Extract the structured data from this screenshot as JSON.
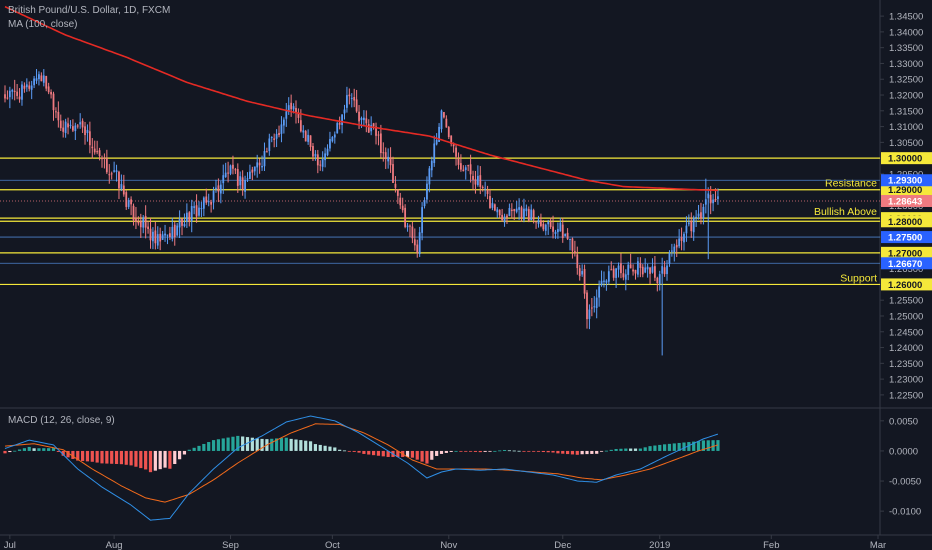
{
  "header": {
    "symbol": "British Pound/U.S. Dollar, 1D, FXCM",
    "ma_label": "MA (100, close)",
    "macd_label": "MACD (12, 26, close, 9)"
  },
  "colors": {
    "background": "#131722",
    "up": "#5b9cf6",
    "down": "#f07a80",
    "ma": "#e52a24",
    "level": "#f5e83a",
    "macd_line": "#2f8fe6",
    "signal_line": "#f26a1b",
    "hist_pos_strong": "#26a69a",
    "hist_pos_weak": "#b2dfdb",
    "hist_neg_strong": "#ef5350",
    "hist_neg_weak": "#ffcdd2",
    "axis_text": "#b2b5be",
    "price_tag": "#2962ff"
  },
  "chart_data": [
    {
      "type": "candlestick",
      "title": "British Pound/U.S. Dollar, 1D, FXCM",
      "x_ticks": [
        "Jul",
        "Aug",
        "Sep",
        "Oct",
        "Nov",
        "Dec",
        "2019",
        "Feb",
        "Mar"
      ],
      "y_ticks": [
        "1.34500",
        "1.34000",
        "1.33500",
        "1.33000",
        "1.32500",
        "1.32000",
        "1.31500",
        "1.31000",
        "1.30500",
        "1.30000",
        "1.29500",
        "1.29000",
        "1.28500",
        "1.28000",
        "1.27500",
        "1.27000",
        "1.26500",
        "1.26000",
        "1.25500",
        "1.25000",
        "1.24500",
        "1.24000",
        "1.23500",
        "1.23000",
        "1.22500"
      ],
      "ylim": [
        1.2218,
        1.3482
      ],
      "horizontal_levels": [
        {
          "value": 1.3,
          "label": "",
          "tag": "1.30000",
          "style": "solid",
          "color": "#f5e83a"
        },
        {
          "value": 1.29,
          "label": "Resistance",
          "tag": "1.29000",
          "style": "solid",
          "color": "#f5e83a"
        },
        {
          "value": 1.281,
          "label": "Bullish Above",
          "tag": "1.28100",
          "style": "solid",
          "color": "#f5e83a"
        },
        {
          "value": 1.28,
          "label": "",
          "tag": "1.28000",
          "style": "solid",
          "color": "#f5e83a"
        },
        {
          "value": 1.27,
          "label": "",
          "tag": "1.27000",
          "style": "solid",
          "color": "#f5e83a"
        },
        {
          "value": 1.26,
          "label": "Support",
          "tag": "1.26000",
          "style": "solid",
          "color": "#f5e83a"
        },
        {
          "value": 1.293,
          "label": "",
          "tag": "1.29300",
          "style": "thin",
          "color": "#5b9cf6"
        },
        {
          "value": 1.275,
          "label": "",
          "tag": "1.27500",
          "style": "thin",
          "color": "#5b9cf6"
        },
        {
          "value": 1.2667,
          "label": "",
          "tag": "1.26670",
          "style": "thin",
          "color": "#5b9cf6"
        },
        {
          "value": 1.28643,
          "label": "",
          "tag": "1.28643",
          "style": "dotted",
          "color": "#f07a80"
        }
      ],
      "price_anchors": [
        [
          0,
          1.3195
        ],
        [
          8,
          1.321
        ],
        [
          14,
          1.327
        ],
        [
          18,
          1.322
        ],
        [
          24,
          1.309
        ],
        [
          32,
          1.311
        ],
        [
          38,
          1.3
        ],
        [
          46,
          1.294
        ],
        [
          52,
          1.283
        ],
        [
          58,
          1.278
        ],
        [
          62,
          1.273
        ],
        [
          68,
          1.276
        ],
        [
          76,
          1.282
        ],
        [
          84,
          1.286
        ],
        [
          92,
          1.296
        ],
        [
          98,
          1.292
        ],
        [
          106,
          1.3
        ],
        [
          112,
          1.308
        ],
        [
          118,
          1.317
        ],
        [
          124,
          1.306
        ],
        [
          130,
          1.299
        ],
        [
          136,
          1.308
        ],
        [
          142,
          1.322
        ],
        [
          146,
          1.312
        ],
        [
          152,
          1.309
        ],
        [
          158,
          1.299
        ],
        [
          162,
          1.286
        ],
        [
          166,
          1.279
        ],
        [
          170,
          1.272
        ],
        [
          175,
          1.297
        ],
        [
          180,
          1.314
        ],
        [
          184,
          1.307
        ],
        [
          188,
          1.298
        ],
        [
          194,
          1.294
        ],
        [
          198,
          1.288
        ],
        [
          204,
          1.282
        ],
        [
          210,
          1.285
        ],
        [
          216,
          1.282
        ],
        [
          222,
          1.28
        ],
        [
          228,
          1.278
        ],
        [
          234,
          1.273
        ],
        [
          238,
          1.262
        ],
        [
          240,
          1.25
        ],
        [
          246,
          1.259
        ],
        [
          252,
          1.265
        ],
        [
          258,
          1.264
        ],
        [
          264,
          1.266
        ],
        [
          270,
          1.262
        ],
        [
          276,
          1.272
        ],
        [
          280,
          1.276
        ],
        [
          286,
          1.281
        ],
        [
          290,
          1.287
        ],
        [
          294,
          1.2864
        ]
      ],
      "ma_anchors": [
        [
          0,
          1.348
        ],
        [
          25,
          1.339
        ],
        [
          50,
          1.332
        ],
        [
          75,
          1.324
        ],
        [
          100,
          1.318
        ],
        [
          125,
          1.3135
        ],
        [
          150,
          1.31
        ],
        [
          175,
          1.307
        ],
        [
          200,
          1.301
        ],
        [
          220,
          1.297
        ],
        [
          240,
          1.293
        ],
        [
          255,
          1.291
        ],
        [
          270,
          1.2905
        ],
        [
          285,
          1.29
        ],
        [
          294,
          1.2898
        ]
      ],
      "candle_count": 295
    },
    {
      "type": "macd",
      "title": "MACD (12, 26, close, 9)",
      "y_ticks": [
        "0.0050",
        "0.0000",
        "-0.0050",
        "-0.0100"
      ],
      "ylim": [
        -0.0128,
        0.0068
      ],
      "macd_anchors": [
        [
          0,
          0.0004
        ],
        [
          10,
          0.0018
        ],
        [
          20,
          0.001
        ],
        [
          30,
          -0.003
        ],
        [
          40,
          -0.006
        ],
        [
          52,
          -0.009
        ],
        [
          60,
          -0.0115
        ],
        [
          68,
          -0.0112
        ],
        [
          76,
          -0.007
        ],
        [
          86,
          -0.003
        ],
        [
          96,
          0.0005
        ],
        [
          106,
          0.0025
        ],
        [
          116,
          0.0048
        ],
        [
          126,
          0.0058
        ],
        [
          136,
          0.005
        ],
        [
          146,
          0.003
        ],
        [
          156,
          0.0005
        ],
        [
          166,
          -0.002
        ],
        [
          174,
          -0.0045
        ],
        [
          180,
          -0.0035
        ],
        [
          186,
          -0.003
        ],
        [
          196,
          -0.0032
        ],
        [
          206,
          -0.003
        ],
        [
          216,
          -0.0035
        ],
        [
          226,
          -0.004
        ],
        [
          236,
          -0.005
        ],
        [
          244,
          -0.0052
        ],
        [
          252,
          -0.004
        ],
        [
          262,
          -0.003
        ],
        [
          272,
          -0.001
        ],
        [
          280,
          0.0005
        ],
        [
          288,
          0.002
        ],
        [
          294,
          0.0028
        ]
      ],
      "signal_anchors": [
        [
          0,
          0.0008
        ],
        [
          12,
          0.0012
        ],
        [
          24,
          0.0002
        ],
        [
          36,
          -0.003
        ],
        [
          48,
          -0.0058
        ],
        [
          58,
          -0.0078
        ],
        [
          66,
          -0.0085
        ],
        [
          76,
          -0.0072
        ],
        [
          86,
          -0.0048
        ],
        [
          96,
          -0.002
        ],
        [
          108,
          0.001
        ],
        [
          118,
          0.003
        ],
        [
          128,
          0.0045
        ],
        [
          138,
          0.0044
        ],
        [
          148,
          0.003
        ],
        [
          158,
          0.001
        ],
        [
          168,
          -0.0015
        ],
        [
          178,
          -0.003
        ],
        [
          188,
          -0.003
        ],
        [
          198,
          -0.003
        ],
        [
          208,
          -0.0032
        ],
        [
          218,
          -0.0035
        ],
        [
          228,
          -0.0038
        ],
        [
          238,
          -0.0045
        ],
        [
          246,
          -0.0048
        ],
        [
          256,
          -0.004
        ],
        [
          266,
          -0.003
        ],
        [
          276,
          -0.0015
        ],
        [
          286,
          0.0
        ],
        [
          294,
          0.001
        ]
      ]
    }
  ]
}
